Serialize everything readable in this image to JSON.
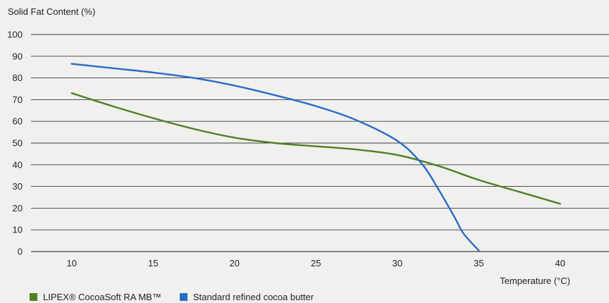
{
  "chart_data": {
    "type": "line",
    "ylabel": "Solid Fat Content (%)",
    "xlabel": "Temperature (°C)",
    "xlim": [
      7.5,
      43
    ],
    "ylim": [
      0,
      100
    ],
    "yticks": [
      0,
      10,
      20,
      30,
      40,
      50,
      60,
      70,
      80,
      90,
      100
    ],
    "xticks": [
      10,
      15,
      20,
      25,
      30,
      35,
      40
    ],
    "grid": "horizontal",
    "legend": "bottom-left",
    "series": [
      {
        "name": "LIPEX® CocoaSoft RA MB™",
        "color": "#4f7f23",
        "x": [
          10,
          12.5,
          15,
          17.5,
          20,
          22.5,
          25,
          27.5,
          30,
          32.5,
          35,
          37.5,
          40
        ],
        "y": [
          73,
          67,
          61.5,
          56.5,
          52.5,
          50,
          48.5,
          47,
          44.5,
          39.5,
          33,
          27.5,
          22
        ]
      },
      {
        "name": "Standard refined cocoa butter",
        "color": "#2a6bc6",
        "x": [
          10,
          12.5,
          15,
          17.5,
          20,
          22.5,
          25,
          27.5,
          30,
          31.5,
          32.5,
          33.5,
          34,
          34.5,
          35
        ],
        "y": [
          86.5,
          84.5,
          82.5,
          80,
          76.5,
          72,
          67,
          60.5,
          51,
          40.5,
          29,
          16,
          9,
          4.5,
          0.5
        ]
      }
    ]
  }
}
